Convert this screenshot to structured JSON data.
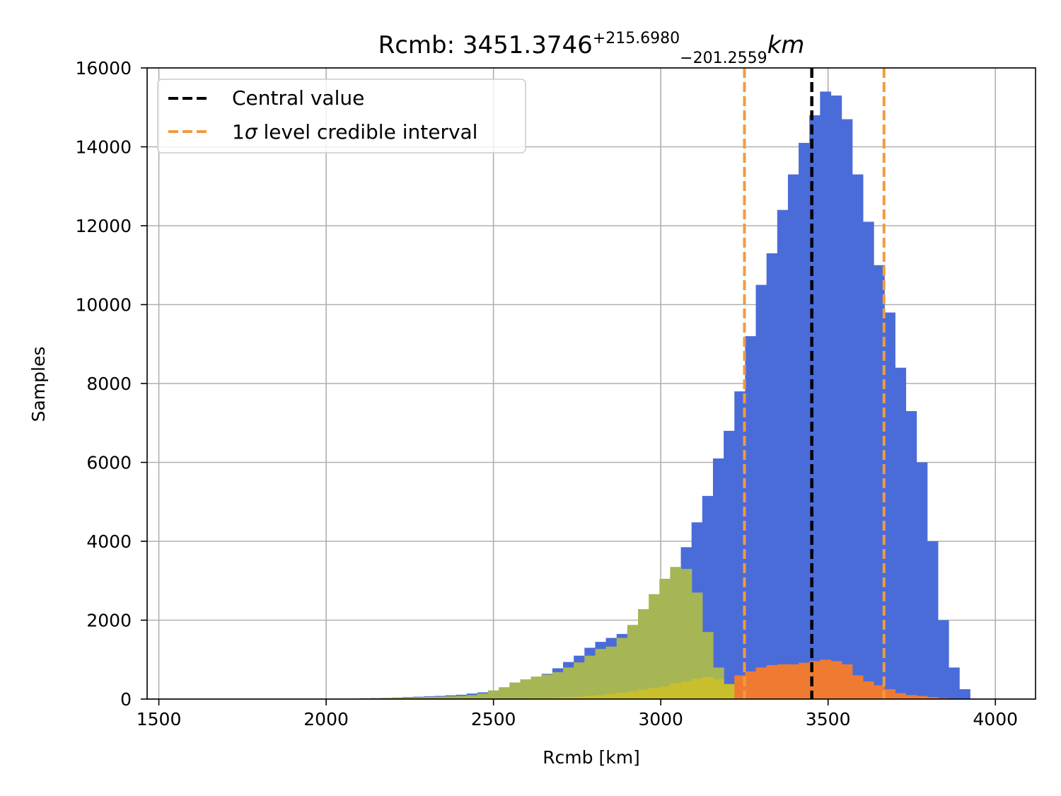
{
  "chart_data": {
    "type": "bar",
    "title": {
      "prefix": "Rcmb: 3451.3746",
      "sup": "+215.6980",
      "sub": "−201.2559",
      "unit": "km"
    },
    "xlabel": "Rcmb [km]",
    "ylabel": "Samples",
    "xlim": [
      1465,
      4120
    ],
    "ylim": [
      0,
      16000
    ],
    "xticks": [
      "1500",
      "2000",
      "2500",
      "3000",
      "3500",
      "4000"
    ],
    "yticks": [
      "0",
      "2000",
      "4000",
      "6000",
      "8000",
      "10000",
      "12000",
      "14000",
      "16000"
    ],
    "grid": true,
    "legend_position": "upper-left",
    "legend": [
      {
        "label": "Central value",
        "color": "#000000",
        "style": "dashed"
      },
      {
        "label_prefix": "1",
        "label_symbol": "σ",
        "label_suffix": " level credible interval",
        "color": "#F39A3C",
        "style": "dashed"
      }
    ],
    "colors": {
      "blue": "#4A6CD9",
      "green": "#A6B655",
      "yellow": "#C9BF2C",
      "orange": "#EF7B33",
      "central": "#000000",
      "interval": "#F39A3C"
    },
    "bin_edges": [
      2100,
      2132,
      2164,
      2196,
      2228,
      2260,
      2292,
      2324,
      2356,
      2388,
      2420,
      2452,
      2484,
      2516,
      2548,
      2580,
      2612,
      2644,
      2676,
      2708,
      2740,
      2772,
      2804,
      2836,
      2868,
      2900,
      2932,
      2964,
      2996,
      3028,
      3060,
      3092,
      3124,
      3156,
      3188,
      3220,
      3252,
      3284,
      3316,
      3348,
      3380,
      3412,
      3444,
      3476,
      3508,
      3540,
      3572,
      3604,
      3636,
      3668,
      3700,
      3732,
      3764,
      3796,
      3828,
      3860,
      3892,
      3924
    ],
    "series": [
      {
        "color_key": "blue",
        "values": [
          20,
          25,
          30,
          40,
          50,
          60,
          70,
          80,
          95,
          110,
          140,
          170,
          210,
          260,
          330,
          420,
          520,
          640,
          780,
          940,
          1100,
          1300,
          1450,
          1550,
          1650,
          1800,
          2000,
          2300,
          2650,
          3150,
          3850,
          4480,
          5150,
          6100,
          6800,
          7800,
          9200,
          10500,
          11300,
          12400,
          13300,
          14100,
          14800,
          15400,
          15300,
          14700,
          13300,
          12100,
          11000,
          9800,
          8400,
          7300,
          6000,
          4000,
          2000,
          800,
          250
        ]
      },
      {
        "color_key": "green",
        "values": [
          15,
          20,
          25,
          35,
          40,
          45,
          55,
          60,
          70,
          80,
          100,
          140,
          220,
          300,
          420,
          500,
          570,
          620,
          680,
          800,
          930,
          1100,
          1270,
          1330,
          1550,
          1880,
          2280,
          2660,
          3050,
          3350,
          3300,
          2700,
          1700,
          800,
          300,
          150
        ]
      },
      {
        "color_key": "yellow",
        "values": [
          0,
          0,
          0,
          0,
          0,
          0,
          0,
          0,
          0,
          0,
          0,
          0,
          0,
          10,
          15,
          20,
          25,
          30,
          40,
          50,
          60,
          80,
          100,
          130,
          160,
          200,
          240,
          280,
          320,
          400,
          450,
          520,
          560,
          500,
          380,
          200
        ]
      },
      {
        "color_key": "orange",
        "values": [
          0,
          0,
          0,
          0,
          0,
          0,
          0,
          0,
          0,
          0,
          0,
          0,
          0,
          0,
          0,
          0,
          0,
          0,
          0,
          0,
          0,
          0,
          0,
          0,
          0,
          0,
          0,
          0,
          0,
          0,
          0,
          0,
          0,
          0,
          0,
          600,
          700,
          800,
          860,
          880,
          880,
          920,
          960,
          1000,
          960,
          880,
          600,
          450,
          350,
          250,
          150,
          100,
          80,
          50,
          25,
          10,
          5
        ]
      }
    ],
    "central_value": 3451.3746,
    "interval": [
      3250.1187,
      3667.0726
    ]
  }
}
